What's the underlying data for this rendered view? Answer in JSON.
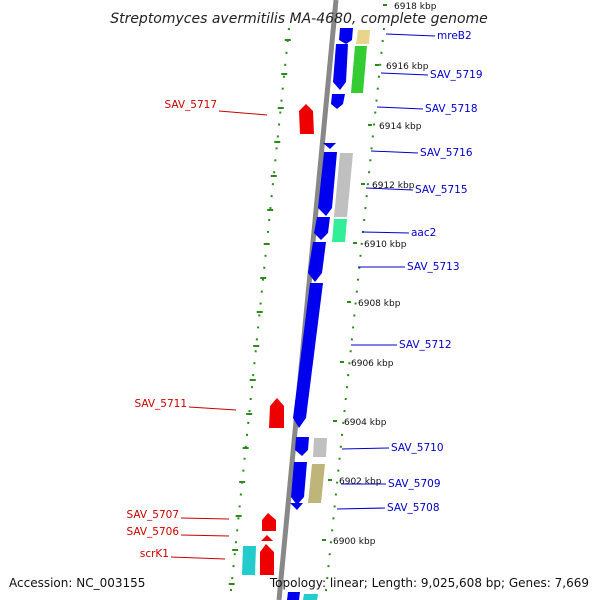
{
  "title": "Streptomyces avermitilis MA-4680, complete genome",
  "footer": {
    "accession": "Accession: NC_003155",
    "topology": "Topology: linear; Length: 9,025,608 bp; Genes: 7,669"
  },
  "colors": {
    "axis": "#888888",
    "dots": "#2a8a1a",
    "forward_gene": "#0000ee",
    "reverse_gene": "#ee0000",
    "forward_label": "#0000cc",
    "reverse_label": "#cc0000",
    "cds_gray": "#c0c0c0",
    "cds_green": "#33cc33",
    "cds_khaki": "#bfb47a",
    "cds_tan": "#e8d48a",
    "cds_mint": "#33ee99",
    "cds_cyan": "#22cccc"
  },
  "ticks": [
    "6918 kbp",
    "6916 kbp",
    "6914 kbp",
    "6912 kbp",
    "6910 kbp",
    "6908 kbp",
    "6906 kbp",
    "6904 kbp",
    "6902 kbp",
    "6900 kbp"
  ],
  "forward_genes": [
    "mreB2",
    "SAV_5719",
    "SAV_5718",
    "SAV_5716",
    "SAV_5715",
    "aac2",
    "SAV_5713",
    "SAV_5712",
    "SAV_5710",
    "SAV_5709",
    "SAV_5708"
  ],
  "reverse_genes": [
    "SAV_5717",
    "SAV_5711",
    "SAV_5707",
    "SAV_5706",
    "scrK1"
  ]
}
